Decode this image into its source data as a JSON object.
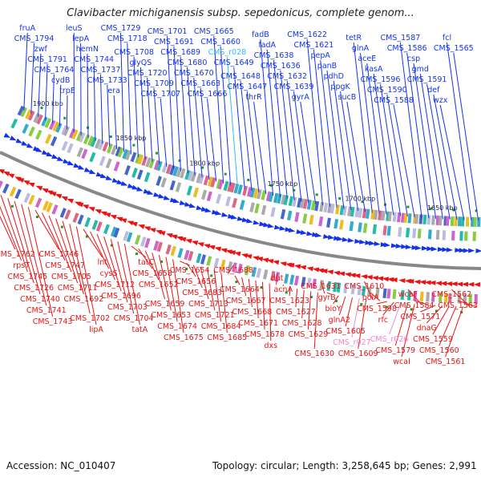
{
  "title": "Clavibacter michiganensis subsp. sepedonicus, complete genom...",
  "footer": {
    "accession": "Accession: NC_010407",
    "summary": "Topology: circular; Length: 3,258,645 bp; Genes: 2,991"
  },
  "colors": {
    "forward_strand": "#1133ee",
    "reverse_strand": "#ee1111",
    "rna": "#44ccee",
    "pseudo": "#ee88cc",
    "backbone": "#888888",
    "gc_marker": "#229922"
  },
  "position_ticks": [
    "1900 kbp",
    "1850 kbp",
    "1800 kbp",
    "1750 kbp",
    "1700 kbp",
    "1650 kbp"
  ],
  "top_genes": [
    "fruA",
    "CMS_1794",
    "zwf",
    "CMS_1791",
    "CMS_1764",
    "cydB",
    "trpE",
    "leuS",
    "lepA",
    "hemN",
    "CMS_1744",
    "CMS_1737",
    "CMS_1733",
    "era",
    "CMS_1729",
    "CMS_1718",
    "CMS_1708",
    "glyQS",
    "CMS_1720",
    "CMS_1709",
    "CMS_1707",
    "CMS_1701",
    "CMS_1691",
    "CMS_1689",
    "CMS_1680",
    "CMS_1670",
    "CMS_1663",
    "CMS_1666",
    "CMS_1665",
    "CMS_1660",
    "CMS_r028",
    "CMS_1649",
    "CMS_1648",
    "CMS_1647",
    "thrR",
    "fadB",
    "fadA",
    "CMS_1638",
    "CMS_1636",
    "CMS_1632",
    "CMS_1639",
    "gyrA",
    "CMS_1622",
    "CMS_1621",
    "pepA",
    "panB",
    "pdhD",
    "ppgK",
    "sucB",
    "tetR",
    "glnA",
    "aceE",
    "kasA",
    "CMS_1596",
    "CMS_1590",
    "CMS_1588",
    "CMS_1587",
    "CMS_1586",
    "csp",
    "gmd",
    "CMS_1591",
    "def",
    "wzx",
    "fcl",
    "CMS_1565"
  ],
  "bottom_genes": [
    "CMS_1762",
    "rpsT",
    "CMS_1745",
    "CMS_1726",
    "CMS_1740",
    "CMS_1741",
    "CMS_1743",
    "CMS_1746",
    "CMS_1747",
    "CMS_1705",
    "CMS_1711",
    "CMS_1692",
    "CMS_1702",
    "lipA",
    "lnt",
    "cysS",
    "CMS_1712",
    "CMS_1696",
    "CMS_1703",
    "CMS_1704",
    "tatA",
    "tatC",
    "CMS_1658",
    "CMS_1652",
    "CMS_1659",
    "CMS_1653",
    "CMS_1674",
    "CMS_1675",
    "CMS_1654",
    "CMS_1656",
    "CMS_1683",
    "CMS_1713",
    "CMS_1721",
    "CMS_1684",
    "CMS_1685",
    "CMS_1688",
    "CMS_1664",
    "CMS_1667",
    "CMS_1668",
    "CMS_1671",
    "CMS_1678",
    "dxs",
    "dut",
    "acnA",
    "CMS_1623",
    "CMS_1627",
    "CMS_1628",
    "CMS_1629",
    "CMS_1630",
    "CMS_1631",
    "gyrB",
    "bioY",
    "glnA2",
    "CMS_1605",
    "CMS_r027",
    "CMS_1609",
    "CMS_1610",
    "polA",
    "CMS_1598",
    "rfc",
    "CMS_r026",
    "CMS_1579",
    "wcaI",
    "wcaF",
    "CMS_1584",
    "CMS_1571",
    "dnaG",
    "CMS_1559",
    "CMS_1560",
    "CMS_1561",
    "CMS_1562",
    "CMS_1563"
  ]
}
